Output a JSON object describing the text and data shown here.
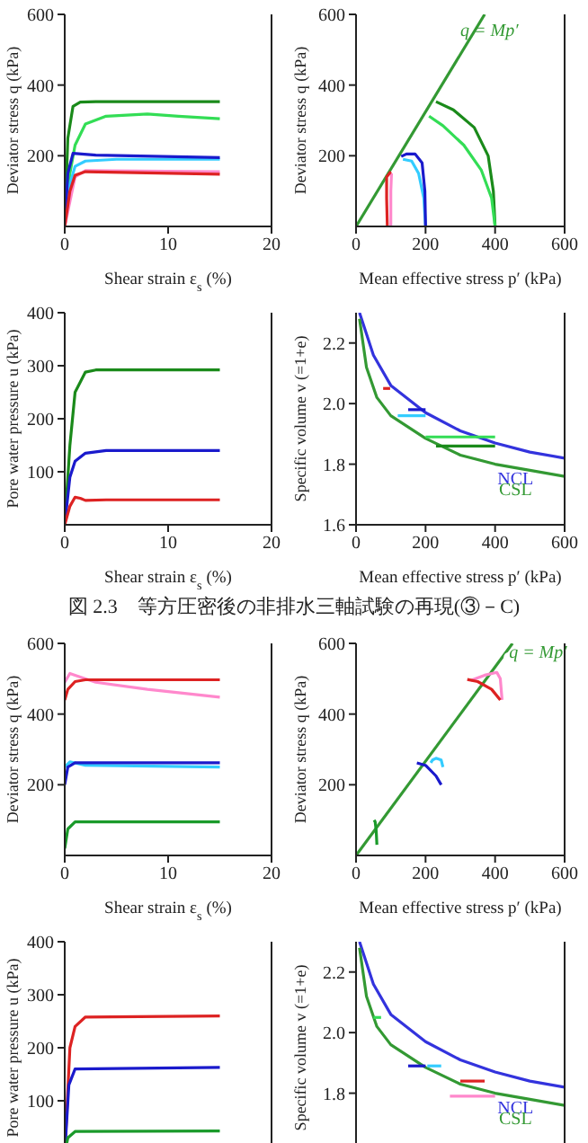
{
  "chart_data": [
    {
      "type": "line",
      "xlabel": "Shear strain  ε$_{s}$ (%)",
      "ylabel": "Deviator stress  q (kPa)",
      "xlim": [
        0,
        20
      ],
      "xticks": [
        0,
        10,
        20
      ],
      "ylim": [
        0,
        600
      ],
      "yticks": [
        200,
        400,
        600
      ],
      "marker": "none",
      "line_style": "solid",
      "series": [
        {
          "color": "#1a8a1a",
          "x": [
            0,
            0.3,
            0.8,
            1.5,
            3,
            15
          ],
          "values": [
            0,
            250,
            340,
            352,
            353,
            353
          ]
        },
        {
          "color": "#33dd55",
          "x": [
            0,
            0.5,
            1,
            2,
            4,
            8,
            11,
            15
          ],
          "values": [
            0,
            150,
            230,
            290,
            312,
            318,
            312,
            305
          ]
        },
        {
          "color": "#33ccff",
          "x": [
            0,
            0.5,
            1,
            2,
            5,
            15
          ],
          "values": [
            0,
            120,
            170,
            185,
            190,
            190
          ]
        },
        {
          "color": "#1a1acc",
          "x": [
            0,
            0.3,
            0.8,
            3,
            15
          ],
          "values": [
            0,
            150,
            207,
            202,
            195
          ]
        },
        {
          "color": "#ff88cc",
          "x": [
            0,
            1,
            2,
            15
          ],
          "values": [
            0,
            140,
            158,
            155
          ]
        },
        {
          "color": "#dd2222",
          "x": [
            0,
            0.5,
            1,
            2,
            15
          ],
          "values": [
            0,
            100,
            145,
            155,
            148
          ]
        }
      ]
    },
    {
      "type": "line",
      "xlabel": "Mean effective stress  p′ (kPa)",
      "ylabel": "Deviator stress  q (kPa)",
      "xlim": [
        0,
        600
      ],
      "xticks": [
        0,
        200,
        400,
        600
      ],
      "ylim": [
        0,
        600
      ],
      "yticks": [
        200,
        400,
        600
      ],
      "marker": "none",
      "line_style": "solid",
      "annotations": [
        {
          "text": "q = Mp′",
          "x": 300,
          "y": 540
        }
      ],
      "series": [
        {
          "color": "#339933",
          "x": [
            0,
            370
          ],
          "values": [
            0,
            600
          ]
        },
        {
          "color": "#1a8a1a",
          "x": [
            400,
            395,
            380,
            340,
            280,
            230
          ],
          "values": [
            0,
            100,
            200,
            280,
            330,
            353
          ]
        },
        {
          "color": "#33dd55",
          "x": [
            400,
            390,
            360,
            310,
            250,
            210
          ],
          "values": [
            0,
            80,
            160,
            230,
            285,
            312
          ]
        },
        {
          "color": "#33ccff",
          "x": [
            200,
            195,
            180,
            160,
            135
          ],
          "values": [
            0,
            80,
            150,
            185,
            190
          ]
        },
        {
          "color": "#1a1acc",
          "x": [
            200,
            198,
            190,
            170,
            145,
            130
          ],
          "values": [
            0,
            100,
            180,
            205,
            205,
            198
          ]
        },
        {
          "color": "#ff88cc",
          "x": [
            100,
            100,
            102
          ],
          "values": [
            0,
            100,
            150
          ]
        },
        {
          "color": "#dd2222",
          "x": [
            90,
            88,
            88,
            100
          ],
          "values": [
            0,
            80,
            140,
            155
          ]
        }
      ]
    },
    {
      "type": "line",
      "xlabel": "Shear strain  ε$_{s}$ (%)",
      "ylabel": "Pore water pressure  u (kPa)",
      "xlim": [
        0,
        20
      ],
      "xticks": [
        0,
        10,
        20
      ],
      "ylim": [
        0,
        400
      ],
      "yticks": [
        100,
        200,
        300,
        400
      ],
      "marker": "none",
      "line_style": "solid",
      "series": [
        {
          "color": "#1a8a1a",
          "x": [
            0,
            0.5,
            1,
            2,
            3,
            15
          ],
          "values": [
            0,
            150,
            250,
            288,
            292,
            292
          ]
        },
        {
          "color": "#1a1acc",
          "x": [
            0,
            0.5,
            1,
            2,
            4,
            15
          ],
          "values": [
            0,
            90,
            120,
            135,
            140,
            140
          ]
        },
        {
          "color": "#dd2222",
          "x": [
            0,
            0.5,
            1,
            1.5,
            2,
            4,
            15
          ],
          "values": [
            0,
            35,
            52,
            50,
            46,
            47,
            47
          ]
        }
      ]
    },
    {
      "type": "line",
      "xlabel": "Mean effective stress  p′ (kPa)",
      "ylabel": "Specific volume  v (=1+e)",
      "xlim": [
        0,
        600
      ],
      "xticks": [
        0,
        200,
        400,
        600
      ],
      "ylim": [
        1.6,
        2.3
      ],
      "yticks": [
        {
          "value": 1.6,
          "label": "1.6"
        },
        {
          "value": 1.8,
          "label": "1.8"
        },
        {
          "value": 2,
          "label": "2.0"
        },
        {
          "value": 2.2,
          "label": "2.2"
        }
      ],
      "marker": "none",
      "line_style": "solid",
      "annotations": [
        "図 2.3　等方圧密後の非排水三軸試験の再現(③－C)"
      ],
      "series": [
        {
          "name": "NCL",
          "color": "#3333dd",
          "x": [
            10,
            50,
            100,
            200,
            300,
            400,
            500,
            600
          ],
          "values": [
            2.3,
            2.16,
            2.06,
            1.97,
            1.91,
            1.87,
            1.84,
            1.82
          ]
        },
        {
          "name": "CSL",
          "color": "#339933",
          "x": [
            10,
            30,
            60,
            100,
            200,
            300,
            400,
            500,
            600
          ],
          "values": [
            2.28,
            2.12,
            2.02,
            1.96,
            1.885,
            1.83,
            1.8,
            1.78,
            1.76
          ]
        },
        {
          "color": "#dd2222",
          "x": [
            78,
            98
          ],
          "values": [
            2.05,
            2.05
          ]
        },
        {
          "color": "#33ccff",
          "x": [
            120,
            200
          ],
          "values": [
            1.96,
            1.96
          ]
        },
        {
          "color": "#1a1acc",
          "x": [
            150,
            200
          ],
          "values": [
            1.98,
            1.98
          ]
        },
        {
          "color": "#33dd55",
          "x": [
            200,
            400
          ],
          "values": [
            1.89,
            1.89
          ]
        },
        {
          "color": "#1a8a1a",
          "x": [
            230,
            400
          ],
          "values": [
            1.86,
            1.86
          ]
        }
      ]
    },
    {
      "type": "line",
      "xlabel": "Shear strain  ε$_{s}$ (%)",
      "ylabel": "Deviator stress  q (kPa)",
      "xlim": [
        0,
        20
      ],
      "xticks": [
        0,
        10,
        20
      ],
      "ylim": [
        0,
        600
      ],
      "yticks": [
        200,
        400,
        600
      ],
      "marker": "none",
      "line_style": "solid",
      "series": [
        {
          "color": "#ff88cc",
          "x": [
            0,
            0.5,
            1,
            3,
            8,
            15
          ],
          "values": [
            490,
            515,
            510,
            490,
            470,
            448
          ]
        },
        {
          "color": "#dd2222",
          "x": [
            0,
            0.3,
            1,
            2,
            15
          ],
          "values": [
            440,
            470,
            492,
            497,
            497
          ]
        },
        {
          "color": "#33ccff",
          "x": [
            0,
            0.5,
            2,
            15
          ],
          "values": [
            250,
            265,
            255,
            250
          ]
        },
        {
          "color": "#1a1acc",
          "x": [
            0,
            0.3,
            1,
            15
          ],
          "values": [
            200,
            250,
            262,
            262
          ]
        },
        {
          "color": "#1a9a2a",
          "x": [
            0,
            0.3,
            1,
            15
          ],
          "values": [
            20,
            75,
            95,
            95
          ]
        }
      ]
    },
    {
      "type": "line",
      "xlabel": "Mean effective stress  p′ (kPa)",
      "ylabel": "Deviator stress  q (kPa)",
      "xlim": [
        0,
        600
      ],
      "xticks": [
        0,
        200,
        400,
        600
      ],
      "ylim": [
        0,
        600
      ],
      "yticks": [
        200,
        400,
        600
      ],
      "marker": "none",
      "line_style": "solid",
      "annotations": [
        {
          "text": "q = Mp′",
          "x": 440,
          "y": 560
        }
      ],
      "series": [
        {
          "color": "#339933",
          "x": [
            0,
            450
          ],
          "values": [
            0,
            600
          ]
        },
        {
          "color": "#ff88cc",
          "x": [
            420,
            415,
            405,
            370,
            330
          ],
          "values": [
            440,
            500,
            518,
            510,
            495
          ]
        },
        {
          "color": "#dd2222",
          "x": [
            415,
            390,
            350,
            320
          ],
          "values": [
            440,
            470,
            492,
            498
          ]
        },
        {
          "color": "#33ccff",
          "x": [
            250,
            245,
            230,
            220,
            215
          ],
          "values": [
            250,
            270,
            275,
            270,
            262
          ]
        },
        {
          "color": "#1a1acc",
          "x": [
            245,
            230,
            200,
            175
          ],
          "values": [
            200,
            225,
            255,
            262
          ]
        },
        {
          "color": "#1a9a2a",
          "x": [
            60,
            58,
            55,
            52
          ],
          "values": [
            30,
            70,
            95,
            100
          ]
        }
      ]
    },
    {
      "type": "line",
      "ylabel": "Pore water pressure  u (kPa)",
      "xlim": [
        0,
        20
      ],
      "ylim": [
        0,
        400
      ],
      "yticks": [
        100,
        200,
        300,
        400
      ],
      "tick_labels": "y",
      "marker": "none",
      "line_style": "solid",
      "series": [
        {
          "color": "#dd2222",
          "x": [
            0,
            0.5,
            1,
            2,
            15
          ],
          "values": [
            0,
            200,
            240,
            258,
            260
          ]
        },
        {
          "color": "#1a1acc",
          "x": [
            0,
            0.4,
            1,
            15
          ],
          "values": [
            0,
            130,
            160,
            163
          ]
        },
        {
          "color": "#1a9a2a",
          "x": [
            0,
            0.3,
            1,
            15
          ],
          "values": [
            0,
            30,
            42,
            43
          ]
        }
      ]
    },
    {
      "type": "line",
      "ylabel": "Specific volume  v (=1+e)",
      "xlim": [
        0,
        600
      ],
      "ylim": [
        1.6,
        2.3
      ],
      "yticks": [
        {
          "value": 1.8,
          "label": "1.8"
        },
        {
          "value": 2,
          "label": "2.0"
        },
        {
          "value": 2.2,
          "label": "2.2"
        }
      ],
      "tick_labels": "y",
      "marker": "none",
      "line_style": "solid",
      "series": [
        {
          "name": "NCL",
          "color": "#3333dd",
          "x": [
            10,
            50,
            100,
            200,
            300,
            400,
            500,
            600
          ],
          "values": [
            2.3,
            2.16,
            2.06,
            1.97,
            1.91,
            1.87,
            1.84,
            1.82
          ]
        },
        {
          "name": "CSL",
          "color": "#339933",
          "x": [
            10,
            30,
            60,
            100,
            200,
            300,
            400,
            500,
            600
          ],
          "values": [
            2.28,
            2.12,
            2.02,
            1.96,
            1.885,
            1.83,
            1.8,
            1.78,
            1.76
          ]
        },
        {
          "color": "#33dd55",
          "x": [
            50,
            72
          ],
          "values": [
            2.05,
            2.05
          ]
        },
        {
          "color": "#1a1acc",
          "x": [
            150,
            200
          ],
          "values": [
            1.89,
            1.89
          ]
        },
        {
          "color": "#33ccff",
          "x": [
            205,
            245
          ],
          "values": [
            1.89,
            1.89
          ]
        },
        {
          "color": "#dd2222",
          "x": [
            300,
            370
          ],
          "values": [
            1.84,
            1.84
          ]
        },
        {
          "color": "#ff88cc",
          "x": [
            270,
            400
          ],
          "values": [
            1.79,
            1.79
          ]
        }
      ]
    }
  ]
}
